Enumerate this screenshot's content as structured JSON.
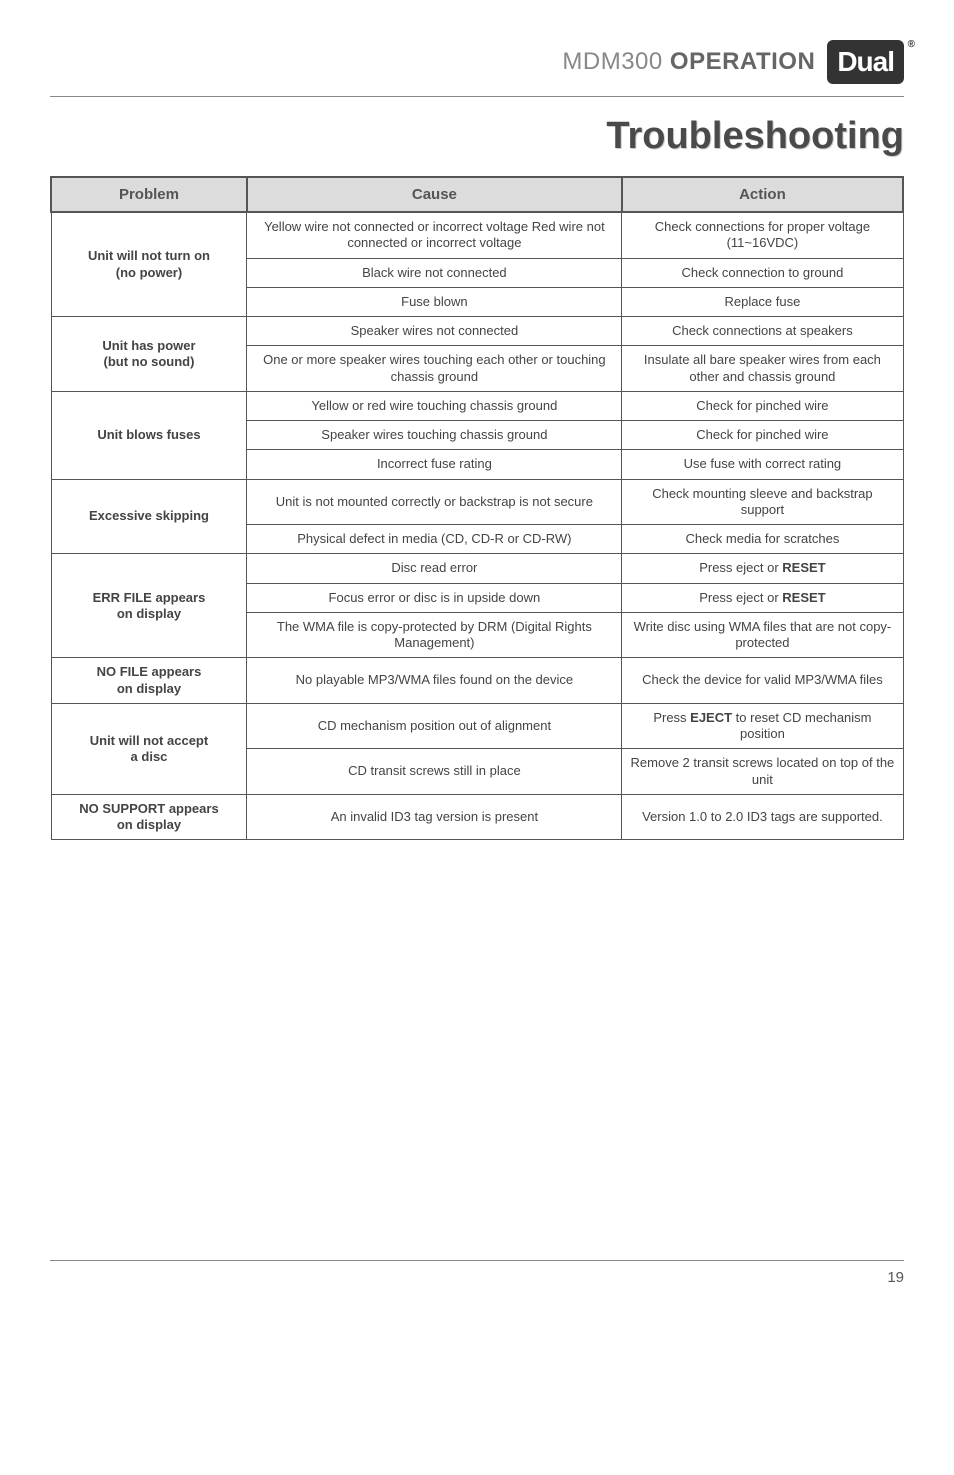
{
  "header": {
    "model": "MDM300",
    "section": "OPERATION",
    "logo_text": "Dual",
    "logo_bg": "#333333",
    "logo_fg": "#ffffff"
  },
  "title": "Troubleshooting",
  "table": {
    "headers": [
      "Problem",
      "Cause",
      "Action"
    ],
    "header_bg": "#dcdcdc",
    "border_color": "#555555",
    "groups": [
      {
        "problem": "Unit will not turn on\n(no power)",
        "rows": [
          {
            "cause": "Yellow wire not connected or incorrect voltage Red wire not connected or incorrect voltage",
            "action": "Check connections for proper voltage (11~16VDC)"
          },
          {
            "cause": "Black wire not connected",
            "action": "Check connection to ground"
          },
          {
            "cause": "Fuse blown",
            "action": "Replace fuse"
          }
        ]
      },
      {
        "problem": "Unit has power\n(but no sound)",
        "rows": [
          {
            "cause": "Speaker wires not connected",
            "action": "Check connections at speakers"
          },
          {
            "cause": "One or more speaker wires touching each other or touching chassis ground",
            "action": "Insulate all bare speaker wires from each other and chassis ground"
          }
        ]
      },
      {
        "problem": "Unit blows fuses",
        "rows": [
          {
            "cause": "Yellow or red wire touching chassis ground",
            "action": "Check for pinched wire"
          },
          {
            "cause": "Speaker wires touching chassis ground",
            "action": "Check for pinched wire"
          },
          {
            "cause": "Incorrect fuse rating",
            "action": "Use fuse with correct rating"
          }
        ]
      },
      {
        "problem": "Excessive skipping",
        "rows": [
          {
            "cause": "Unit is not mounted correctly or backstrap is not secure",
            "action": "Check mounting sleeve and backstrap support"
          },
          {
            "cause": "Physical defect in media (CD, CD-R or CD-RW)",
            "action": "Check media for scratches"
          }
        ]
      },
      {
        "problem": "ERR FILE appears\non display",
        "rows": [
          {
            "cause": "Disc read error",
            "action": "Press eject or RESET",
            "action_bold": "RESET"
          },
          {
            "cause": "Focus error or disc is in upside down",
            "action": "Press eject or RESET",
            "action_bold": "RESET"
          },
          {
            "cause": "The WMA file is copy-protected by DRM (Digital Rights Management)",
            "action": "Write disc using WMA files that are not copy-protected"
          }
        ]
      },
      {
        "problem": "NO FILE appears\non display",
        "rows": [
          {
            "cause": "No playable MP3/WMA files found on the device",
            "action": "Check the device for valid MP3/WMA files"
          }
        ]
      },
      {
        "problem": "Unit will not accept\na disc",
        "rows": [
          {
            "cause": "CD mechanism position out of alignment",
            "action": "Press EJECT to reset CD mechanism position",
            "action_bold": "EJECT"
          },
          {
            "cause": "CD transit screws still in place",
            "action": "Remove 2 transit screws located on top of the unit"
          }
        ]
      },
      {
        "problem": "NO SUPPORT appears\non display",
        "rows": [
          {
            "cause": "An invalid ID3 tag version is present",
            "action": "Version 1.0 to 2.0 ID3 tags are supported."
          }
        ]
      }
    ]
  },
  "footer": {
    "page": "19"
  }
}
